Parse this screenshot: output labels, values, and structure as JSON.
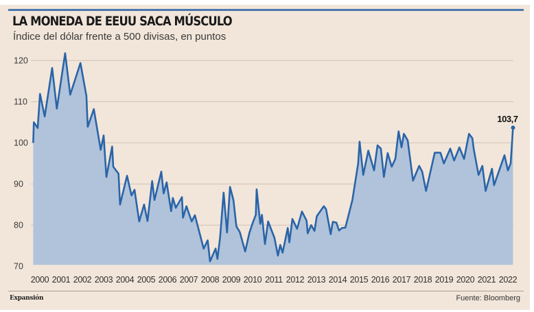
{
  "header": {
    "title": "LA MONEDA DE EEUU SACA MÚSCULO",
    "subtitle": "Índice del dólar frente a 500 divisas, en puntos"
  },
  "footer": {
    "logo": "Expansión",
    "source": "Fuente: Bloomberg"
  },
  "colors": {
    "background": "#f2e6da",
    "line": "#2a64a8",
    "fill": "#b0c3da",
    "topbar": "#4a78b0",
    "grid": "#d3c5b7"
  },
  "chart_data": {
    "type": "area",
    "title": "LA MONEDA DE EEUU SACA MÚSCULO",
    "subtitle": "Índice del dólar frente a 500 divisas, en puntos",
    "xlabel": "",
    "ylabel": "",
    "xlim": [
      2000,
      2023
    ],
    "ylim": [
      70,
      120
    ],
    "grid": true,
    "y_ticks": [
      70,
      80,
      90,
      100,
      110,
      120
    ],
    "x_tick_labels": [
      "2000",
      "2001",
      "2002",
      "2003",
      "2004",
      "2005",
      "2006",
      "2007",
      "2008",
      "2009",
      "2010",
      "2011",
      "2012",
      "2013",
      "2014",
      "2015",
      "2016",
      "2017",
      "2018",
      "2019",
      "2020",
      "2021",
      "2022"
    ],
    "annotation": {
      "label": "103,7",
      "x": 2022.74,
      "y": 103.7
    },
    "series": [
      {
        "name": "Índice del dólar",
        "x": [
          2000.19,
          2000.22,
          2000.4,
          2000.51,
          2000.73,
          2001.08,
          2001.3,
          2001.69,
          2001.93,
          2002.41,
          2002.69,
          2002.75,
          2003.04,
          2003.36,
          2003.5,
          2003.63,
          2003.9,
          2003.95,
          2004.2,
          2004.27,
          2004.6,
          2004.81,
          2004.95,
          2005.17,
          2005.4,
          2005.56,
          2005.78,
          2005.89,
          2006.21,
          2006.32,
          2006.46,
          2006.67,
          2006.75,
          2006.89,
          2007.18,
          2007.23,
          2007.39,
          2007.64,
          2007.79,
          2008.2,
          2008.39,
          2008.5,
          2008.76,
          2008.85,
          2008.97,
          2009.14,
          2009.3,
          2009.44,
          2009.6,
          2009.74,
          2009.9,
          2010.15,
          2010.35,
          2010.51,
          2010.65,
          2010.69,
          2010.86,
          2010.94,
          2011.08,
          2011.23,
          2011.53,
          2011.69,
          2011.8,
          2011.91,
          2012.15,
          2012.23,
          2012.37,
          2012.59,
          2012.82,
          2013.04,
          2013.09,
          2013.25,
          2013.41,
          2013.52,
          2013.85,
          2013.95,
          2014.17,
          2014.27,
          2014.44,
          2014.56,
          2014.7,
          2014.86,
          2015.19,
          2015.46,
          2015.53,
          2015.7,
          2015.94,
          2016.21,
          2016.37,
          2016.53,
          2016.67,
          2016.85,
          2017.04,
          2017.21,
          2017.36,
          2017.5,
          2017.61,
          2017.79,
          2018.04,
          2018.33,
          2018.47,
          2018.65,
          2019.06,
          2019.33,
          2019.49,
          2019.79,
          2019.97,
          2020.22,
          2020.44,
          2020.67,
          2020.83,
          2020.89,
          2021.12,
          2021.3,
          2021.45,
          2021.75,
          2021.85,
          2022.34,
          2022.5,
          2022.63,
          2022.74
        ],
        "values": [
          100,
          105,
          103.6,
          111.9,
          106.4,
          118.2,
          108.3,
          121.8,
          111.7,
          119.4,
          111.4,
          103.9,
          108.2,
          98.3,
          101.8,
          91.7,
          99.1,
          94.2,
          92.5,
          85,
          92,
          87.2,
          88.6,
          80.9,
          85,
          81,
          90.7,
          86.1,
          93,
          87.7,
          90.4,
          83.4,
          86.6,
          84.2,
          86.8,
          81.8,
          84.6,
          80.9,
          82.4,
          74.3,
          76.3,
          71.2,
          74.3,
          71.8,
          76.9,
          87.9,
          78.2,
          89.3,
          86.1,
          79.7,
          78.3,
          73.6,
          78.1,
          80.6,
          82.5,
          88.7,
          80.3,
          82.5,
          75.4,
          80.9,
          76.9,
          72.6,
          75.2,
          73.3,
          79.3,
          75.8,
          81.5,
          79.1,
          83.3,
          81.1,
          78,
          80,
          78.6,
          82.2,
          84.6,
          83.9,
          77.8,
          80.8,
          80.6,
          78.7,
          79.3,
          79.4,
          86.1,
          95,
          100.3,
          92.2,
          98.1,
          93.3,
          99.4,
          98.6,
          91.7,
          97.5,
          94.2,
          96.1,
          102.8,
          98.9,
          102.2,
          100.6,
          90.8,
          94.4,
          93,
          88.3,
          97.6,
          97.6,
          95,
          98.6,
          95.7,
          98.9,
          96.1,
          102.2,
          101.1,
          98.6,
          92.2,
          94.4,
          88.3,
          93.7,
          89.7,
          97,
          93.3,
          95,
          103.7
        ]
      }
    ]
  }
}
